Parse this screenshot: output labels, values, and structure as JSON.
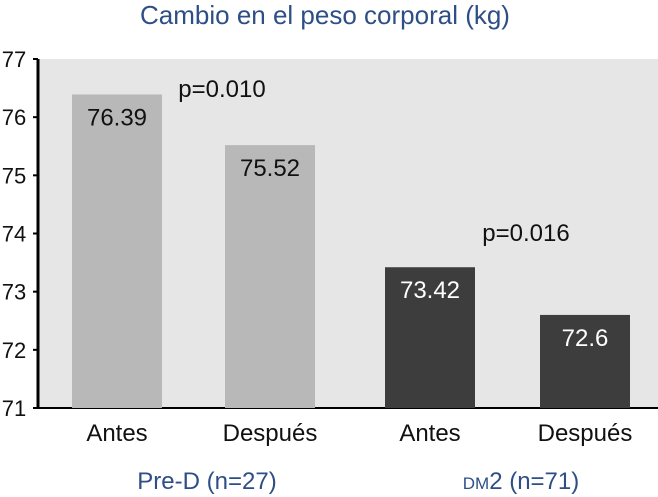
{
  "chart_data": {
    "type": "bar",
    "title": "Cambio en el peso corporal (kg)",
    "ylim": [
      71,
      77
    ],
    "yticks": [
      "71",
      "72",
      "73",
      "74",
      "75",
      "76",
      "77"
    ],
    "categories": [
      "Antes",
      "Después",
      "Antes",
      "Después"
    ],
    "values": [
      76.39,
      75.52,
      73.42,
      72.6
    ],
    "value_labels": [
      "76.39",
      "75.52",
      "73.42",
      "72.6"
    ],
    "groups": [
      {
        "label": "Pre-D (n=27)",
        "p_value": "p=0.010",
        "color": "#b8b8b8",
        "value_label_color": "#111111"
      },
      {
        "label_prefix": "DM",
        "label_suffix": "2 (n=71)",
        "p_value": "p=0.016",
        "color": "#3d3d3d",
        "value_label_color": "#ffffff"
      }
    ],
    "plot_background": "#e6e6e6",
    "grid": false,
    "legend": "none"
  }
}
